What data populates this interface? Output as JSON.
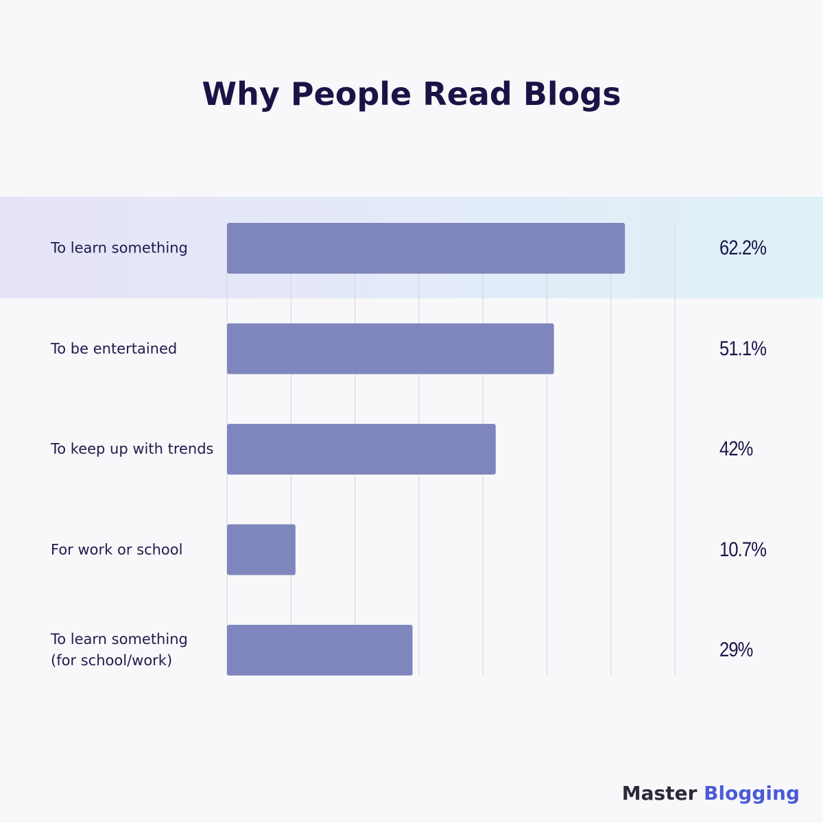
{
  "chart_data": {
    "type": "hbar",
    "title": "Why People Read Blogs",
    "categories": [
      "To learn something",
      "To be entertained",
      "To keep up with trends",
      "For work or school",
      "To learn something\n(for school/work)"
    ],
    "values": [
      62.2,
      51.1,
      42,
      10.7,
      29
    ],
    "value_labels": [
      "62.2%",
      "51.1%",
      "42%",
      "10.7%",
      "29%"
    ],
    "color": "#7f86bd",
    "xlim": [
      0,
      70
    ],
    "xticks": [
      0,
      10,
      20,
      30,
      40,
      50,
      60,
      70
    ],
    "grid": true
  },
  "brand": {
    "first": "Master",
    "second": "Blogging"
  }
}
